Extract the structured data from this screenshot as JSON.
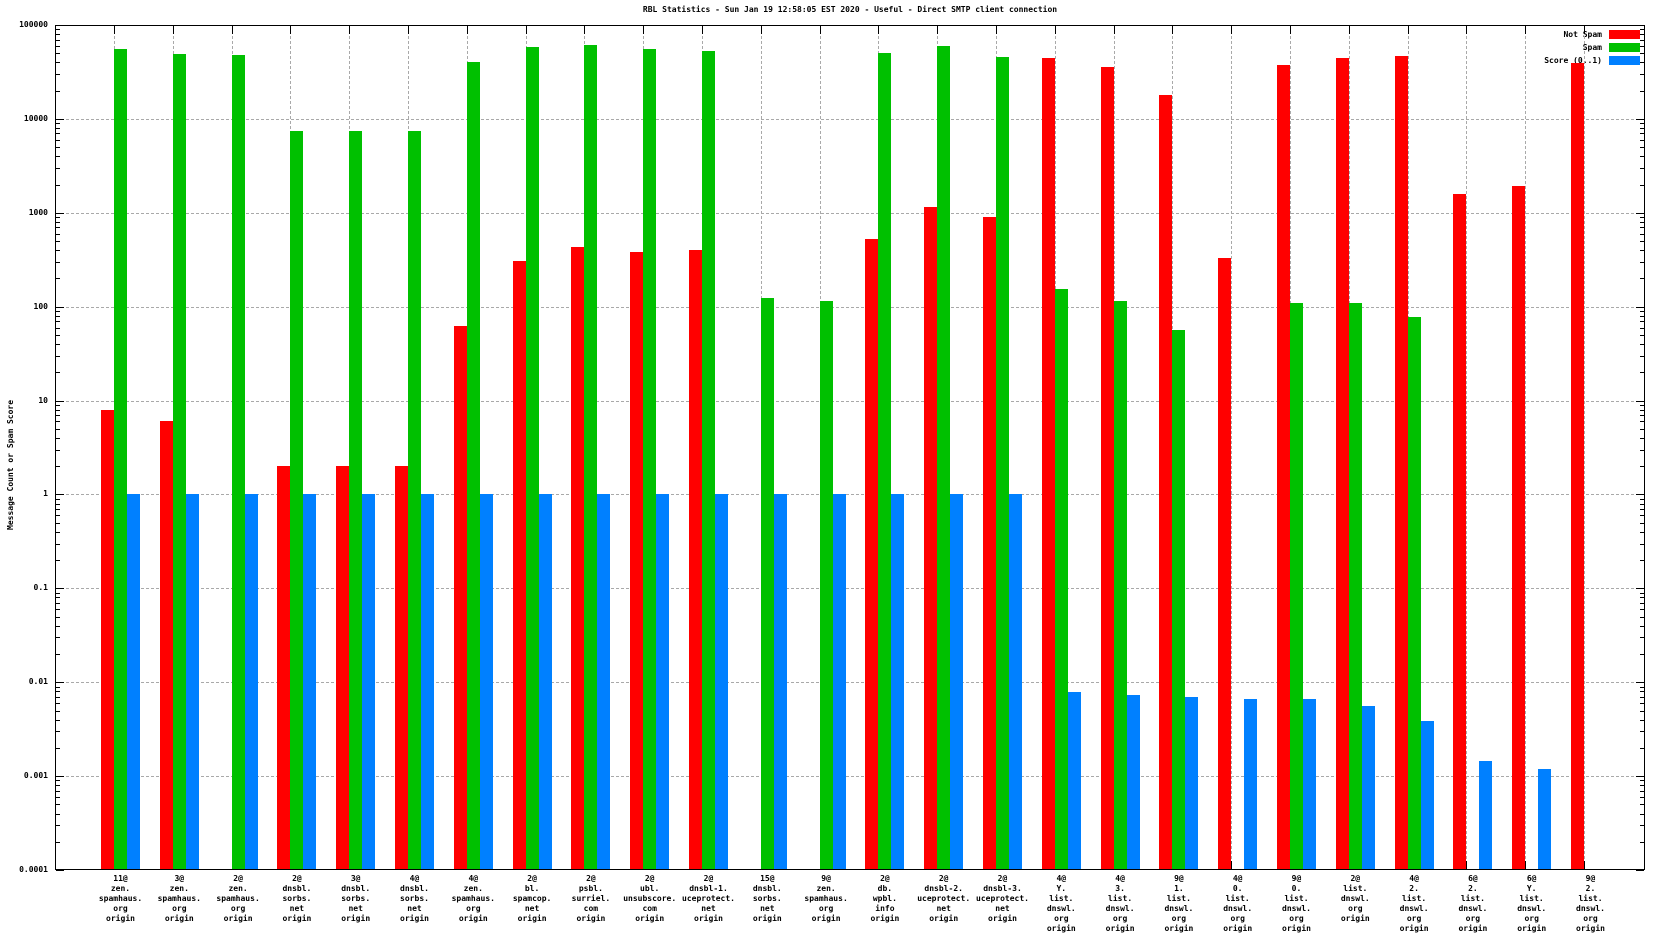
{
  "chart_data": {
    "type": "bar",
    "title": "RBL Statistics - Sun Jan 19 12:58:05 EST 2020 - Useful - Direct SMTP client connection",
    "ylabel": "Message Count or Spam Score",
    "yscale": "log",
    "ylim": [
      0.0001,
      100000
    ],
    "ytick_labels": [
      "100000",
      "10000",
      "1000",
      "100",
      "10",
      "1",
      "0.1",
      "0.01",
      "0.001",
      "0.0001"
    ],
    "grid": true,
    "legend_position": "top-right-inside",
    "series": [
      {
        "name": "Not Spam",
        "color": "#ff0000"
      },
      {
        "name": "Spam",
        "color": "#00c000"
      },
      {
        "name": "Score (0..1)",
        "color": "#0080ff"
      }
    ],
    "groups": [
      {
        "label": [
          "11@",
          "zen.",
          "spamhaus.",
          "org",
          "origin"
        ],
        "values": [
          8,
          56000,
          1
        ]
      },
      {
        "label": [
          "3@",
          "zen.",
          "spamhaus.",
          "org",
          "origin"
        ],
        "values": [
          6,
          49000,
          1
        ]
      },
      {
        "label": [
          "2@",
          "zen.",
          "spamhaus.",
          "org",
          "origin"
        ],
        "values": [
          null,
          48000,
          1
        ]
      },
      {
        "label": [
          "2@",
          "dnsbl.",
          "sorbs.",
          "net",
          "origin"
        ],
        "values": [
          2,
          7400,
          1
        ]
      },
      {
        "label": [
          "3@",
          "dnsbl.",
          "sorbs.",
          "net",
          "origin"
        ],
        "values": [
          2,
          7400,
          1
        ]
      },
      {
        "label": [
          "4@",
          "dnsbl.",
          "sorbs.",
          "net",
          "origin"
        ],
        "values": [
          2,
          7400,
          1
        ]
      },
      {
        "label": [
          "4@",
          "zen.",
          "spamhaus.",
          "org",
          "origin"
        ],
        "values": [
          63,
          40000,
          1
        ]
      },
      {
        "label": [
          "2@",
          "bl.",
          "spamcop.",
          "net",
          "origin"
        ],
        "values": [
          310,
          58000,
          1
        ]
      },
      {
        "label": [
          "2@",
          "psbl.",
          "surriel.",
          "com",
          "origin"
        ],
        "values": [
          430,
          62000,
          1
        ]
      },
      {
        "label": [
          "2@",
          "ubl.",
          "unsubscore.",
          "com",
          "origin"
        ],
        "values": [
          380,
          55000,
          1
        ]
      },
      {
        "label": [
          "2@",
          "dnsbl-1.",
          "uceprotect.",
          "net",
          "origin"
        ],
        "values": [
          400,
          53000,
          1
        ]
      },
      {
        "label": [
          "15@",
          "dnsbl.",
          "sorbs.",
          "net",
          "origin"
        ],
        "values": [
          null,
          125,
          1
        ]
      },
      {
        "label": [
          "9@",
          "zen.",
          "spamhaus.",
          "org",
          "origin"
        ],
        "values": [
          null,
          115,
          1
        ]
      },
      {
        "label": [
          "2@",
          "db.",
          "wpbl.",
          "info",
          "origin"
        ],
        "values": [
          520,
          50000,
          1
        ]
      },
      {
        "label": [
          "2@",
          "dnsbl-2.",
          "uceprotect.",
          "net",
          "origin"
        ],
        "values": [
          1150,
          60000,
          1
        ]
      },
      {
        "label": [
          "2@",
          "dnsbl-3.",
          "uceprotect.",
          "net",
          "origin"
        ],
        "values": [
          900,
          46000,
          1
        ]
      },
      {
        "label": [
          "4@",
          "Y.",
          "list.",
          "dnswl.",
          "org",
          "origin"
        ],
        "values": [
          45000,
          155,
          0.0078
        ]
      },
      {
        "label": [
          "4@",
          "3.",
          "list.",
          "dnswl.",
          "org",
          "origin"
        ],
        "values": [
          36000,
          115,
          0.0074
        ]
      },
      {
        "label": [
          "9@",
          "1.",
          "list.",
          "dnswl.",
          "org",
          "origin"
        ],
        "values": [
          18000,
          57,
          0.0069
        ]
      },
      {
        "label": [
          "4@",
          "0.",
          "list.",
          "dnswl.",
          "org",
          "origin"
        ],
        "values": [
          330,
          null,
          0.0067
        ]
      },
      {
        "label": [
          "9@",
          "0.",
          "list.",
          "dnswl.",
          "org",
          "origin"
        ],
        "values": [
          38000,
          110,
          0.0066
        ]
      },
      {
        "label": [
          "2@",
          "list.",
          "dnswl.",
          "org",
          "origin"
        ],
        "values": [
          45000,
          110,
          0.0056
        ]
      },
      {
        "label": [
          "4@",
          "2.",
          "list.",
          "dnswl.",
          "org",
          "origin"
        ],
        "values": [
          47000,
          78,
          0.0039
        ]
      },
      {
        "label": [
          "6@",
          "2.",
          "list.",
          "dnswl.",
          "org",
          "origin"
        ],
        "values": [
          1600,
          null,
          0.00145
        ]
      },
      {
        "label": [
          "6@",
          "Y.",
          "list.",
          "dnswl.",
          "org",
          "origin"
        ],
        "values": [
          1950,
          null,
          0.0012
        ]
      },
      {
        "label": [
          "9@",
          "2.",
          "list.",
          "dnswl.",
          "org",
          "origin"
        ],
        "values": [
          39000,
          null,
          null
        ]
      }
    ]
  }
}
